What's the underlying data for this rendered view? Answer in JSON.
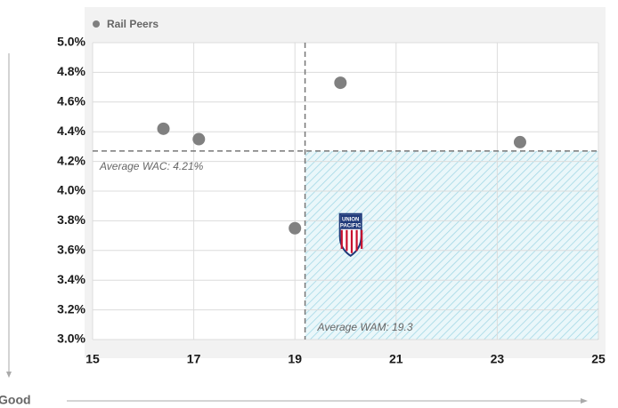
{
  "chart_data": {
    "type": "scatter",
    "legend_position": "upper left",
    "series": [
      {
        "name": "Rail Peers",
        "color": "#808080",
        "x": [
          16.4,
          17.1,
          19.9,
          23.45,
          19.0
        ],
        "values": [
          4.42,
          4.35,
          4.73,
          4.33,
          3.75
        ]
      },
      {
        "logo_text": [
          "UNION",
          "PACIFIC"
        ],
        "color": "#1f3a7a",
        "x": [
          20.1
        ],
        "values": [
          3.72
        ]
      }
    ],
    "xlim": [
      15,
      25
    ],
    "xticks": [
      15,
      17,
      19,
      21,
      23,
      25
    ],
    "ylim": [
      3.0,
      5.0
    ],
    "yticks": [
      {
        "value": 3.0,
        "label": "3.0%"
      },
      {
        "value": 3.2,
        "label": "3.2%"
      },
      {
        "value": 3.4,
        "label": "3.4%"
      },
      {
        "value": 3.6,
        "label": "3.6%"
      },
      {
        "value": 3.8,
        "label": "3.8%"
      },
      {
        "value": 4.0,
        "label": "4.0%"
      },
      {
        "value": 4.2,
        "label": "4.2%"
      },
      {
        "value": 4.4,
        "label": "4.4%"
      },
      {
        "value": 4.6,
        "label": "4.6%"
      },
      {
        "value": 4.8,
        "label": "4.8%"
      },
      {
        "value": 5.0,
        "label": "5.0%"
      }
    ],
    "grid": true,
    "reference_lines": {
      "y": 4.27,
      "x": 19.2
    },
    "annotations": {
      "wac": "Average WAC:  4.21%",
      "wam": "Average WAM: 19.3",
      "axis_note": "Good"
    }
  }
}
